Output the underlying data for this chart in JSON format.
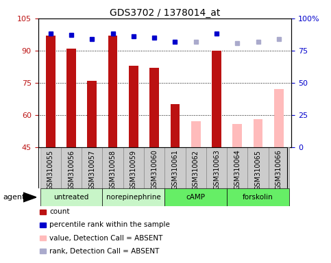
{
  "title": "GDS3702 / 1378014_at",
  "samples": [
    "GSM310055",
    "GSM310056",
    "GSM310057",
    "GSM310058",
    "GSM310059",
    "GSM310060",
    "GSM310061",
    "GSM310062",
    "GSM310063",
    "GSM310064",
    "GSM310065",
    "GSM310066"
  ],
  "bar_values": [
    97,
    91,
    76,
    97,
    83,
    82,
    65,
    null,
    90,
    null,
    null,
    null
  ],
  "bar_absent_values": [
    null,
    null,
    null,
    null,
    null,
    null,
    null,
    57,
    null,
    56,
    58,
    72
  ],
  "rank_present": [
    88,
    87,
    84,
    88,
    86,
    85,
    82,
    null,
    88,
    null,
    null,
    null
  ],
  "rank_absent": [
    null,
    null,
    null,
    null,
    null,
    null,
    null,
    82,
    null,
    81,
    82,
    84
  ],
  "ylim_left": [
    45,
    105
  ],
  "ylim_right": [
    0,
    100
  ],
  "yticks_left": [
    45,
    60,
    75,
    90,
    105
  ],
  "yticks_right": [
    0,
    25,
    50,
    75,
    100
  ],
  "ytick_labels_left": [
    "45",
    "60",
    "75",
    "90",
    "105"
  ],
  "ytick_labels_right": [
    "0",
    "25",
    "50",
    "75",
    "100%"
  ],
  "agent_groups": [
    {
      "label": "untreated",
      "indices": [
        0,
        1,
        2
      ],
      "color": "#c8f5c8"
    },
    {
      "label": "norepinephrine",
      "indices": [
        3,
        4,
        5
      ],
      "color": "#c8f5c8"
    },
    {
      "label": "cAMP",
      "indices": [
        6,
        7,
        8
      ],
      "color": "#66ee66"
    },
    {
      "label": "forskolin",
      "indices": [
        9,
        10,
        11
      ],
      "color": "#66ee66"
    }
  ],
  "bar_color_present": "#bb1111",
  "bar_color_absent": "#ffbbbb",
  "rank_color_present": "#0000cc",
  "rank_color_absent": "#aaaacc",
  "bar_width": 0.45,
  "bg_color": "#cccccc",
  "plot_bg": "#ffffff",
  "legend_items": [
    {
      "label": "count",
      "type": "bar",
      "color": "#bb1111"
    },
    {
      "label": "percentile rank within the sample",
      "type": "square",
      "color": "#0000cc"
    },
    {
      "label": "value, Detection Call = ABSENT",
      "type": "bar",
      "color": "#ffbbbb"
    },
    {
      "label": "rank, Detection Call = ABSENT",
      "type": "square",
      "color": "#aaaacc"
    }
  ],
  "agent_label": "agent",
  "rank_marker_size": 5
}
